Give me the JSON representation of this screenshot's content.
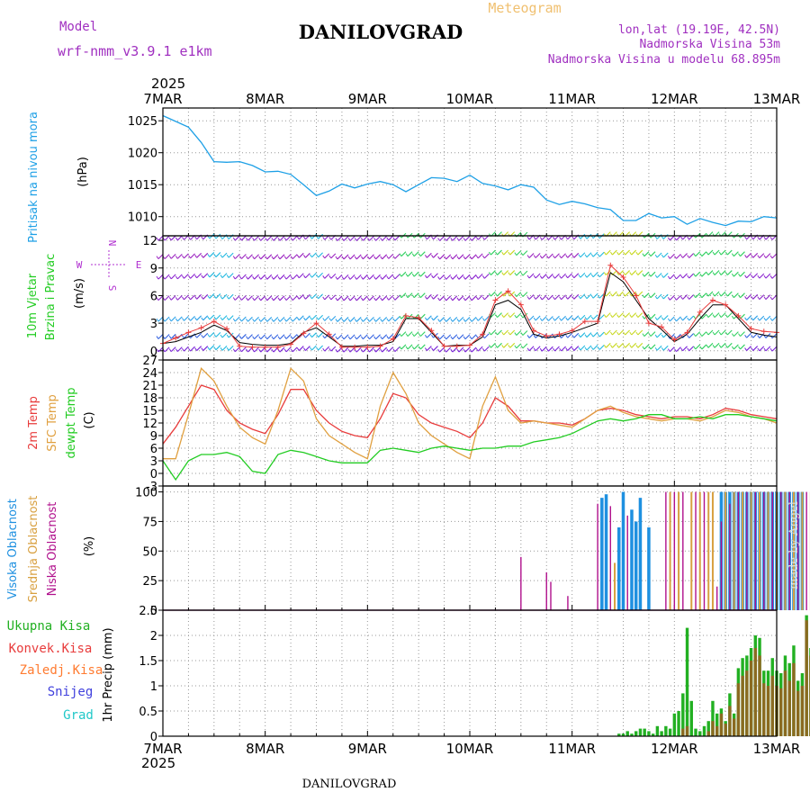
{
  "header": {
    "model_label": "Model",
    "model_name": "wrf-nmm_v3.9.1 e1km",
    "location": "DANILOVGRAD",
    "product": "Meteogram",
    "lonlat": "lon,lat (19.19E, 42.5N)",
    "elevation": "Nadmorska Visina 53m",
    "model_elevation": "Nadmorska Visina u modelu 68.895m"
  },
  "footer": {
    "location": "DANILOVGRAD",
    "credit": "made by Angel"
  },
  "time_axis": {
    "year": "2025",
    "days": [
      "7MAR",
      "8MAR",
      "9MAR",
      "10MAR",
      "11MAR",
      "12MAR",
      "13MAR"
    ]
  },
  "colors": {
    "pressure": "#1ea0e6",
    "t2m": "#e83c3c",
    "sfc": "#e0a040",
    "dewpt": "#22cc22",
    "wind_line": "#000000",
    "gust_mark": "#e83c3c",
    "cloud_high": "#1e90e0",
    "cloud_mid": "#d8a040",
    "cloud_low": "#b0108c",
    "rain_total": "#22b022",
    "rain_conv": "#e83c3c",
    "freezing": "#ff7b30",
    "snow": "#4040dd",
    "hail": "#20c8c8",
    "wind_label": "#b030d0",
    "header_purple": "#a030c0",
    "meteogram": "#f0c070"
  },
  "chart_data": [
    {
      "type": "line",
      "panel": "pressure",
      "ylabel": "Pritisak na nivou mora",
      "unit": "(hPa)",
      "ylim": [
        1007,
        1027
      ],
      "yticks": [
        1010,
        1015,
        1020,
        1025
      ],
      "x_hours": [
        0,
        3,
        6,
        9,
        12,
        15,
        18,
        21,
        24,
        27,
        30,
        33,
        36,
        39,
        42,
        45,
        48,
        51,
        54,
        57,
        60,
        63,
        66,
        69,
        72,
        75,
        78,
        81,
        84,
        87,
        90,
        93,
        96,
        99,
        102,
        105,
        108,
        111,
        114,
        117,
        120,
        123,
        126,
        129,
        132,
        135,
        138,
        141,
        144
      ],
      "values": [
        1025.8,
        1024.9,
        1024.0,
        1021.6,
        1018.6,
        1018.5,
        1018.6,
        1018.0,
        1017.0,
        1017.1,
        1016.6,
        1015.0,
        1013.3,
        1014.0,
        1015.1,
        1014.5,
        1015.1,
        1015.5,
        1015.0,
        1013.9,
        1015.0,
        1016.1,
        1016.0,
        1015.5,
        1016.5,
        1015.2,
        1014.8,
        1014.2,
        1015.0,
        1014.6,
        1012.6,
        1011.9,
        1012.4,
        1012.0,
        1011.4,
        1011.1,
        1009.4,
        1009.4,
        1010.5,
        1009.8,
        1010.0,
        1008.8,
        1009.7,
        1009.1,
        1008.6,
        1009.3,
        1009.2,
        1010.0,
        1009.8
      ]
    },
    {
      "type": "line",
      "panel": "wind",
      "ylabel": "10m Vjetar",
      "ylabel2": "Brzina i Pravac",
      "unit": "(m/s)",
      "ylim": [
        -1,
        12.5
      ],
      "yticks": [
        0,
        3,
        6,
        9,
        12
      ],
      "compass": {
        "n": "N",
        "w": "W",
        "e": "E",
        "s": "S"
      },
      "barb_levels": [
        0.3,
        1.7,
        3.6,
        5.9,
        8.2,
        10.4,
        12.4
      ],
      "x_hours": [
        0,
        3,
        6,
        9,
        12,
        15,
        18,
        21,
        24,
        27,
        30,
        33,
        36,
        39,
        42,
        45,
        48,
        51,
        54,
        57,
        60,
        63,
        66,
        69,
        72,
        75,
        78,
        81,
        84,
        87,
        90,
        93,
        96,
        99,
        102,
        105,
        108,
        111,
        114,
        117,
        120,
        123,
        126,
        129,
        132,
        135,
        138,
        141,
        144
      ],
      "series": [
        {
          "name": "speed",
          "values": [
            0.8,
            1.0,
            1.5,
            2.0,
            2.8,
            2.2,
            0.9,
            0.7,
            0.6,
            0.6,
            0.8,
            2.0,
            2.5,
            1.5,
            0.5,
            0.5,
            0.6,
            0.6,
            1.0,
            3.5,
            3.5,
            2.0,
            0.5,
            0.6,
            0.6,
            1.5,
            5.0,
            5.5,
            4.5,
            1.8,
            1.4,
            1.6,
            2.0,
            2.5,
            3.0,
            8.5,
            7.5,
            5.5,
            3.5,
            2.3,
            1.0,
            1.8,
            3.5,
            5.0,
            5.0,
            3.5,
            2.0,
            1.7,
            1.5
          ]
        },
        {
          "name": "gusts",
          "values": [
            0.8,
            1.4,
            2.0,
            2.5,
            3.2,
            2.4,
            0.5,
            0.4,
            0.4,
            0.4,
            0.7,
            1.9,
            3.0,
            1.8,
            0.4,
            0.4,
            0.4,
            0.5,
            1.3,
            3.8,
            3.6,
            2.2,
            0.5,
            0.5,
            0.6,
            1.8,
            5.5,
            6.5,
            5.0,
            2.2,
            1.6,
            1.8,
            2.2,
            3.2,
            3.2,
            9.3,
            8.0,
            6.0,
            3.0,
            2.6,
            1.2,
            2.0,
            4.2,
            5.5,
            5.0,
            3.8,
            2.4,
            2.1,
            2.0
          ]
        }
      ]
    },
    {
      "type": "line",
      "panel": "temperature",
      "unit": "(C)",
      "ylim": [
        -3,
        27
      ],
      "yticks": [
        -3,
        0,
        3,
        6,
        9,
        12,
        15,
        18,
        21,
        24,
        27
      ],
      "x_hours": [
        0,
        3,
        6,
        9,
        12,
        15,
        18,
        21,
        24,
        27,
        30,
        33,
        36,
        39,
        42,
        45,
        48,
        51,
        54,
        57,
        60,
        63,
        66,
        69,
        72,
        75,
        78,
        81,
        84,
        87,
        90,
        93,
        96,
        99,
        102,
        105,
        108,
        111,
        114,
        117,
        120,
        123,
        126,
        129,
        132,
        135,
        138,
        141,
        144
      ],
      "series": [
        {
          "name": "2m Temp",
          "values": [
            7.0,
            11.0,
            16.0,
            21.0,
            20.0,
            15.0,
            12.0,
            10.5,
            9.5,
            14.0,
            20.0,
            20.0,
            15.0,
            12.0,
            10.0,
            9.0,
            8.5,
            13.0,
            19.0,
            18.0,
            14.0,
            12.0,
            11.0,
            10.0,
            8.5,
            12.0,
            18.0,
            16.0,
            12.5,
            12.5,
            12.0,
            12.0,
            11.5,
            13.0,
            15.0,
            15.5,
            15.0,
            14.0,
            13.5,
            13.0,
            13.5,
            13.5,
            13.0,
            14.0,
            15.5,
            15.0,
            14.0,
            13.5,
            13.0
          ]
        },
        {
          "name": "SFC Temp",
          "values": [
            3.5,
            3.5,
            14.0,
            25.0,
            22.0,
            16.0,
            11.0,
            8.5,
            7.0,
            15.0,
            25.0,
            22.0,
            13.0,
            9.0,
            7.0,
            5.0,
            3.5,
            16.0,
            24.0,
            19.0,
            12.0,
            9.0,
            7.0,
            5.0,
            3.5,
            16.0,
            23.0,
            15.0,
            12.0,
            12.5,
            12.0,
            11.5,
            11.0,
            13.0,
            15.0,
            16.0,
            14.5,
            13.5,
            13.0,
            12.5,
            13.0,
            13.0,
            12.5,
            13.5,
            15.0,
            14.5,
            13.5,
            13.0,
            12.0
          ]
        },
        {
          "name": "dewpt Temp",
          "values": [
            3.0,
            -1.5,
            3.0,
            4.5,
            4.5,
            5.0,
            4.0,
            0.5,
            0.0,
            4.5,
            5.5,
            5.0,
            4.0,
            3.0,
            2.5,
            2.5,
            2.5,
            5.5,
            6.0,
            5.5,
            5.0,
            6.0,
            6.5,
            6.0,
            5.5,
            6.0,
            6.0,
            6.5,
            6.5,
            7.5,
            8.0,
            8.5,
            9.5,
            11.0,
            12.5,
            13.0,
            12.5,
            13.0,
            14.0,
            14.0,
            13.0,
            13.0,
            13.5,
            13.0,
            14.0,
            14.0,
            13.5,
            13.0,
            12.5
          ]
        }
      ],
      "legend": [
        "2m Temp",
        "SFC Temp",
        "dewpt Temp"
      ]
    },
    {
      "type": "bar",
      "panel": "cloud",
      "unit": "(%)",
      "ylim": [
        0,
        105
      ],
      "yticks": [
        0,
        25,
        50,
        75,
        100
      ],
      "legend": [
        "Visoka Oblacnost",
        "Srednja Oblacnost",
        "Niska Oblacnost"
      ],
      "series": [
        {
          "name": "Visoka Oblacnost",
          "x_hours": [
            103,
            104,
            107,
            108,
            110,
            111,
            112,
            114,
            131,
            132,
            133,
            134,
            135,
            136,
            137,
            138,
            139,
            140,
            141,
            142,
            143,
            144,
            145,
            146,
            147,
            148,
            149,
            150
          ],
          "values": [
            95,
            98,
            70,
            100,
            85,
            75,
            95,
            70,
            100,
            100,
            100,
            100,
            100,
            100,
            100,
            100,
            100,
            100,
            100,
            100,
            100,
            100,
            100,
            100,
            100,
            100,
            100,
            100
          ]
        },
        {
          "name": "Srednja Oblacnost",
          "x_hours": [
            106,
            119,
            121,
            124,
            126,
            128,
            129,
            132,
            134,
            136,
            138,
            140,
            142,
            144,
            146,
            148,
            150,
            152,
            156,
            158,
            160,
            162,
            164,
            166
          ],
          "values": [
            40,
            100,
            100,
            100,
            100,
            100,
            100,
            100,
            100,
            100,
            100,
            100,
            100,
            100,
            100,
            100,
            100,
            100,
            80,
            95,
            85,
            75,
            55,
            45
          ]
        },
        {
          "name": "Niska Oblacnost",
          "x_hours": [
            84,
            90,
            91,
            95,
            102,
            105,
            109,
            118,
            120,
            122,
            125,
            127,
            130,
            131,
            133,
            135,
            137,
            139,
            141,
            143,
            145,
            147,
            149,
            151,
            153,
            155,
            157,
            159,
            161,
            163,
            165
          ],
          "values": [
            45,
            32,
            24,
            12,
            90,
            88,
            80,
            100,
            100,
            100,
            100,
            100,
            20,
            75,
            90,
            100,
            100,
            100,
            100,
            100,
            100,
            100,
            100,
            100,
            95,
            85,
            95,
            90,
            100,
            25,
            30
          ]
        }
      ]
    },
    {
      "type": "bar",
      "panel": "precip",
      "ylabel": "1hr Precip",
      "unit": "(mm)",
      "ylim": [
        0,
        2.5
      ],
      "yticks": [
        0,
        0.5,
        1,
        1.5,
        2,
        2.5
      ],
      "legend": [
        "Ukupna Kisa",
        "Konvek.Kisa",
        "Zaledj.Kisa",
        "Snijeg",
        "Grad"
      ],
      "x_hours": [
        107,
        108,
        109,
        110,
        111,
        112,
        113,
        114,
        115,
        116,
        117,
        118,
        119,
        120,
        121,
        122,
        123,
        124,
        125,
        126,
        127,
        128,
        129,
        130,
        131,
        132,
        133,
        134,
        135,
        136,
        137,
        138,
        139,
        140,
        141,
        142,
        143,
        144,
        145,
        146,
        147,
        148,
        149,
        150,
        151,
        152,
        153,
        154,
        155,
        156,
        157,
        158,
        159,
        160,
        161,
        162,
        163,
        164,
        165,
        166,
        167
      ],
      "series": [
        {
          "name": "Ukupna Kisa",
          "values": [
            0.05,
            0.05,
            0.1,
            0.05,
            0.1,
            0.15,
            0.15,
            0.1,
            0.05,
            0.2,
            0.1,
            0.2,
            0.15,
            0.45,
            0.5,
            0.85,
            2.15,
            0.7,
            0.15,
            0.1,
            0.2,
            0.3,
            0.7,
            0.45,
            0.55,
            0.3,
            0.85,
            0.45,
            1.35,
            1.55,
            1.6,
            1.75,
            2.0,
            1.95,
            1.3,
            1.3,
            1.55,
            1.3,
            1.25,
            1.6,
            1.45,
            1.8,
            1.1,
            1.25,
            2.4,
            1.75,
            1.25,
            0.8,
            0.95,
            1.35,
            0.6,
            0.95,
            0.5,
            0.8,
            0.4,
            0.3,
            0.35,
            0.2,
            0.1,
            0.05,
            0.0
          ]
        },
        {
          "name": "Konvek.Kisa",
          "values": [
            0,
            0,
            0,
            0,
            0,
            0,
            0,
            0,
            0,
            0,
            0,
            0,
            0,
            0,
            0,
            0.15,
            0.2,
            0,
            0,
            0,
            0,
            0.1,
            0.3,
            0.2,
            0.45,
            0.25,
            0.6,
            0.35,
            1.05,
            1.2,
            1.3,
            1.5,
            1.75,
            1.6,
            1.05,
            1.0,
            1.2,
            1.0,
            0.95,
            1.3,
            1.1,
            1.45,
            0.9,
            1.0,
            2.3,
            1.6,
            1.0,
            0.6,
            0.75,
            1.15,
            0.45,
            0.75,
            0.35,
            0.6,
            0.3,
            0.2,
            0.25,
            0.1,
            0.05,
            0,
            0
          ]
        }
      ]
    }
  ]
}
